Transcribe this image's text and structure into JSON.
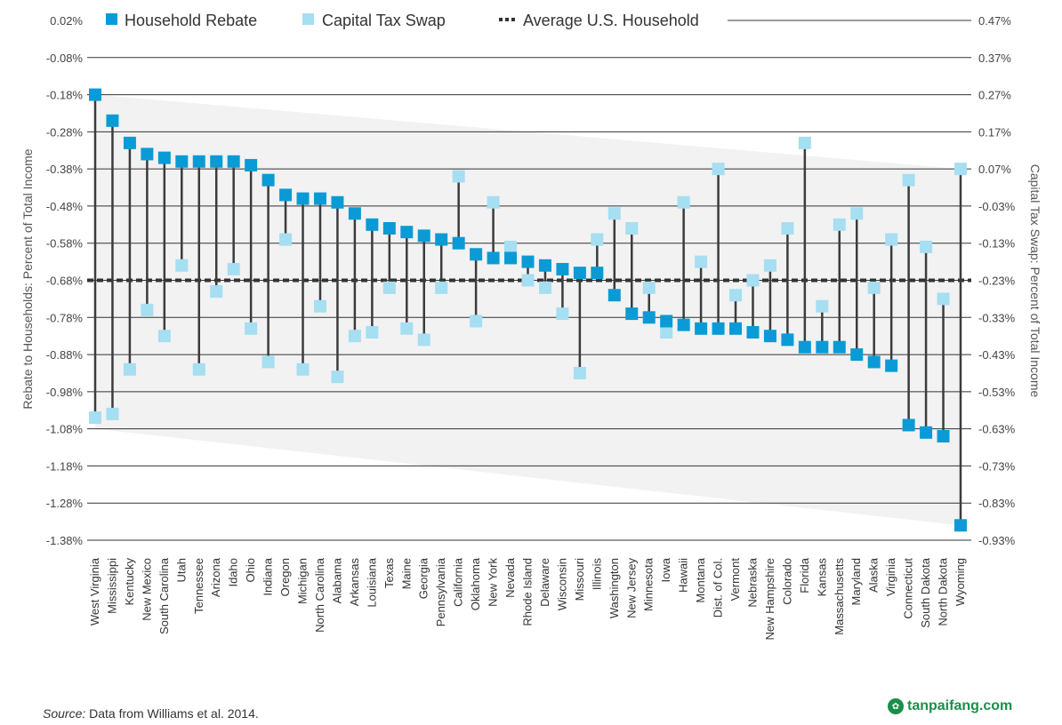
{
  "chart_data": {
    "type": "scatter",
    "categories": [
      "West Virginia",
      "Mississippi",
      "Kentucky",
      "New Mexico",
      "South Carolina",
      "Utah",
      "Tennessee",
      "Arizona",
      "Idaho",
      "Ohio",
      "Indiana",
      "Oregon",
      "Michigan",
      "North Carolina",
      "Alabama",
      "Arkansas",
      "Louisiana",
      "Texas",
      "Maine",
      "Georgia",
      "Pennsylvania",
      "California",
      "Oklahoma",
      "New York",
      "Nevada",
      "Rhode Island",
      "Delaware",
      "Wisconsin",
      "Missouri",
      "Illinois",
      "Washington",
      "New Jersey",
      "Minnesota",
      "Iowa",
      "Hawaii",
      "Montana",
      "Dist. of Col.",
      "Vermont",
      "Nebraska",
      "New Hampshire",
      "Colorado",
      "Florida",
      "Kansas",
      "Massachusetts",
      "Maryland",
      "Alaska",
      "Virginia",
      "Connecticut",
      "South Dakota",
      "North Dakota",
      "Wyoming"
    ],
    "series": [
      {
        "name": "Household Rebate",
        "axis": "left",
        "color": "#0a9bd6",
        "values": [
          -0.18,
          -0.25,
          -0.31,
          -0.34,
          -0.35,
          -0.36,
          -0.36,
          -0.36,
          -0.36,
          -0.37,
          -0.41,
          -0.45,
          -0.46,
          -0.46,
          -0.47,
          -0.5,
          -0.53,
          -0.54,
          -0.55,
          -0.56,
          -0.57,
          -0.58,
          -0.61,
          -0.62,
          -0.62,
          -0.63,
          -0.64,
          -0.65,
          -0.66,
          -0.66,
          -0.72,
          -0.77,
          -0.78,
          -0.79,
          -0.8,
          -0.81,
          -0.81,
          -0.81,
          -0.82,
          -0.83,
          -0.84,
          -0.86,
          -0.86,
          -0.86,
          -0.88,
          -0.9,
          -0.91,
          -1.07,
          -1.09,
          -1.1,
          -1.34
        ]
      },
      {
        "name": "Capital Tax Swap",
        "axis": "right",
        "color": "#a6def2",
        "values": [
          -0.6,
          -0.59,
          -0.47,
          -0.31,
          -0.38,
          -0.19,
          -0.47,
          -0.26,
          -0.2,
          -0.36,
          -0.45,
          -0.12,
          -0.47,
          -0.3,
          -0.49,
          -0.38,
          -0.37,
          -0.25,
          -0.36,
          -0.39,
          -0.25,
          0.05,
          -0.34,
          -0.02,
          -0.14,
          -0.23,
          -0.25,
          -0.32,
          -0.48,
          -0.12,
          -0.05,
          -0.09,
          -0.25,
          -0.37,
          -0.02,
          -0.18,
          0.07,
          -0.27,
          -0.23,
          -0.19,
          -0.09,
          0.14,
          -0.3,
          -0.08,
          -0.05,
          -0.25,
          -0.12,
          0.04,
          -0.14,
          -0.28,
          0.07
        ]
      }
    ],
    "average_line": {
      "name": "Average U.S. Household",
      "value": -0.68
    },
    "left_axis": {
      "label": "Rebate to Households: Percent of Total Income",
      "ylim": [
        -1.38,
        0.02
      ],
      "ticks": [
        "0.02%",
        "-0.08%",
        "-0.18%",
        "-0.28%",
        "-0.38%",
        "-0.48%",
        "-0.58%",
        "-0.68%",
        "-0.78%",
        "-0.88%",
        "-0.98%",
        "-1.08%",
        "-1.18%",
        "-1.28%",
        "-1.38%"
      ]
    },
    "right_axis": {
      "label": "Capital Tax Swap: Percent of Total Income",
      "ylim": [
        -0.93,
        0.47
      ],
      "ticks": [
        "0.47%",
        "0.37%",
        "0.27%",
        "0.17%",
        "0.07%",
        "-0.03%",
        "-0.13%",
        "-0.23%",
        "-0.33%",
        "-0.43%",
        "-0.53%",
        "-0.63%",
        "-0.73%",
        "-0.83%",
        "-0.93%"
      ]
    },
    "grid": true,
    "legend_position": "top"
  },
  "source": {
    "label": "Source:",
    "text": "Data from Williams et al. 2014."
  },
  "watermark": {
    "text": "tanpaifang.com",
    "icon": "leaf-icon"
  }
}
